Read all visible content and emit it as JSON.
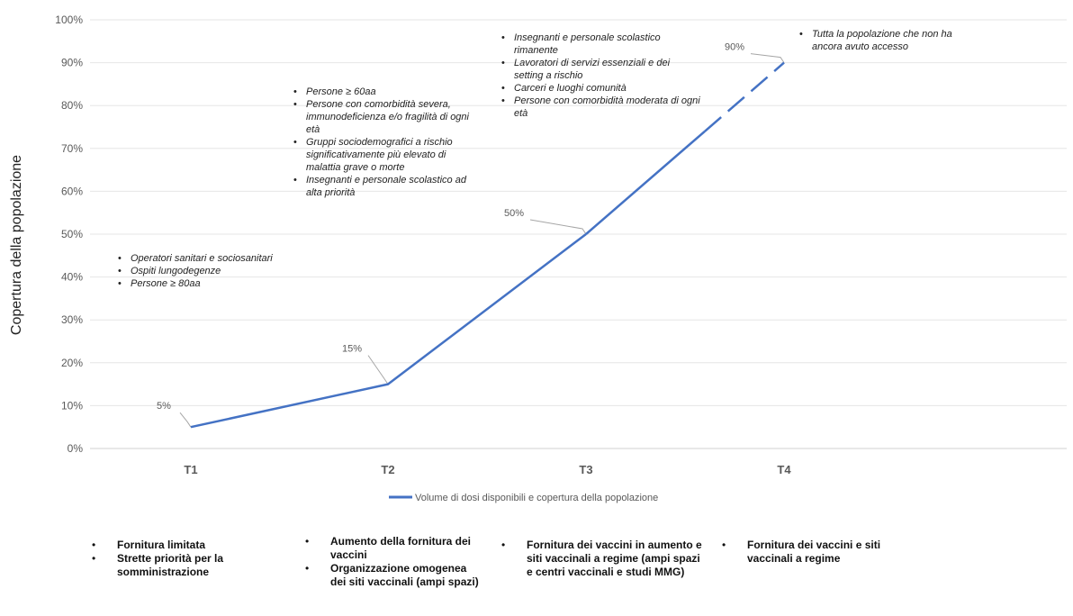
{
  "chart_data": {
    "type": "line",
    "title": "",
    "xlabel": "",
    "ylabel": "Copertura della popolazione",
    "categories": [
      "T1",
      "T2",
      "T3",
      "T4"
    ],
    "y_ticks": [
      "0%",
      "10%",
      "20%",
      "30%",
      "40%",
      "50%",
      "60%",
      "70%",
      "80%",
      "90%",
      "100%"
    ],
    "ylim": [
      0,
      100
    ],
    "grid": true,
    "legend_position": "bottom",
    "series": [
      {
        "name": "Volume di dosi disponibili e copertura della popolazione",
        "values": [
          5,
          15,
          50,
          90
        ],
        "data_labels": [
          "5%",
          "15%",
          "50%",
          "90%"
        ],
        "color": "#4472c4",
        "dashed_last_segment": true
      }
    ],
    "annotations": [
      {
        "items": [
          "Operatori sanitari e sociosanitari",
          "Ospiti lungodegenze",
          "Persone ≥ 80aa"
        ]
      },
      {
        "items": [
          "Persone ≥ 60aa",
          "Persone con comorbidità severa, immunodeficienza e/o fragilità di ogni età",
          "Gruppi sociodemografici a rischio significativamente più elevato di malattia grave o morte",
          "Insegnanti e personale scolastico ad alta priorità"
        ]
      },
      {
        "items": [
          "Insegnanti e personale scolastico rimanente",
          "Lavoratori di servizi essenziali e dei setting a rischio",
          "Carceri e luoghi comunità",
          "Persone con comorbidità moderata di ogni età"
        ]
      },
      {
        "items": [
          "Tutta la popolazione che non ha ancora avuto accesso"
        ]
      }
    ]
  },
  "bottom_notes": [
    {
      "items": [
        "Fornitura limitata",
        "Strette priorità per la somministrazione"
      ]
    },
    {
      "items": [
        "Aumento della fornitura dei vaccini",
        "Organizzazione omogenea dei siti vaccinali (ampi spazi)"
      ]
    },
    {
      "items": [
        "Fornitura dei vaccini in aumento e siti vaccinali a regime (ampi spazi e centri vaccinali e studi MMG)"
      ]
    },
    {
      "items": [
        "Fornitura dei vaccini e siti vaccinali a regime"
      ]
    }
  ]
}
